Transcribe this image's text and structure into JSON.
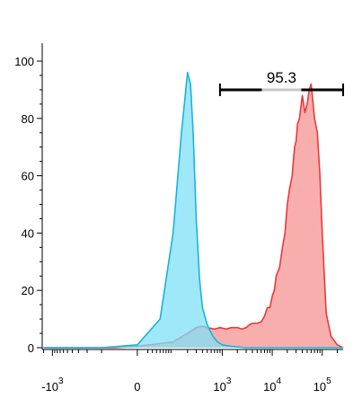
{
  "chart_data": {
    "type": "area",
    "title": "",
    "xlabel": "",
    "ylabel": "",
    "x_scale": "biexponential",
    "ylim": [
      0,
      100
    ],
    "y_ticks": [
      {
        "value": 0,
        "label": "0"
      },
      {
        "value": 20,
        "label": "20"
      },
      {
        "value": 40,
        "label": "40"
      },
      {
        "value": 60,
        "label": "60"
      },
      {
        "value": 80,
        "label": "80"
      },
      {
        "value": 100,
        "label": "100"
      }
    ],
    "x_ticks": [
      {
        "value": -1000,
        "base": "-10",
        "exp": "3"
      },
      {
        "value": 0,
        "base": "0",
        "exp": ""
      },
      {
        "value": 1000,
        "base": "10",
        "exp": "3"
      },
      {
        "value": 10000,
        "base": "10",
        "exp": "4"
      },
      {
        "value": 100000,
        "base": "10",
        "exp": "5"
      }
    ],
    "gate": {
      "label": "95.3",
      "x_start": 900,
      "x_end": 262000
    },
    "colors": {
      "series_cyan_fill": "#7fe0f7",
      "series_cyan_line": "#18b4dc",
      "series_red_fill": "#f9aaaa",
      "series_red_line": "#e83a3a",
      "axis": "#000000",
      "gate_bar": "#000000",
      "gate_bar_mid": "#c8c8c8"
    },
    "series": [
      {
        "values_desc": "cyan",
        "x": [
          -1500,
          -300,
          -100,
          0,
          50,
          100,
          150,
          200,
          230,
          260,
          300,
          350,
          400,
          500,
          650,
          800,
          1000,
          1500,
          3000,
          10000,
          30000,
          100000,
          262000
        ],
        "y": [
          0,
          0,
          0,
          1,
          10,
          40,
          75,
          96,
          92,
          75,
          45,
          24,
          14,
          8,
          4,
          2,
          1,
          0.5,
          0,
          0,
          0,
          0,
          0
        ]
      },
      {
        "values_desc": "red",
        "x": [
          -1500,
          -300,
          -50,
          0,
          100,
          200,
          300,
          400,
          500,
          700,
          900,
          1200,
          1500,
          2000,
          2500,
          3000,
          3500,
          4000,
          5000,
          6000,
          7000,
          8000,
          9000,
          10000,
          11000,
          12000,
          14000,
          16000,
          18000,
          20000,
          22000,
          25000,
          28000,
          30000,
          32000,
          35000,
          38000,
          40000,
          45000,
          50000,
          55000,
          60000,
          65000,
          70000,
          80000,
          90000,
          100000,
          120000,
          150000,
          200000,
          262000
        ],
        "y": [
          0,
          0,
          0,
          0.5,
          2,
          5,
          7,
          7.5,
          7,
          6.5,
          7,
          6.5,
          7,
          7,
          6.5,
          7,
          8,
          8.5,
          8.5,
          9,
          11,
          14,
          14,
          18,
          20,
          25,
          28,
          35,
          40,
          50,
          55,
          60,
          70,
          72,
          78,
          80,
          85,
          88,
          82,
          85,
          90,
          92,
          86,
          80,
          75,
          60,
          40,
          12,
          4,
          1,
          0
        ]
      }
    ]
  }
}
